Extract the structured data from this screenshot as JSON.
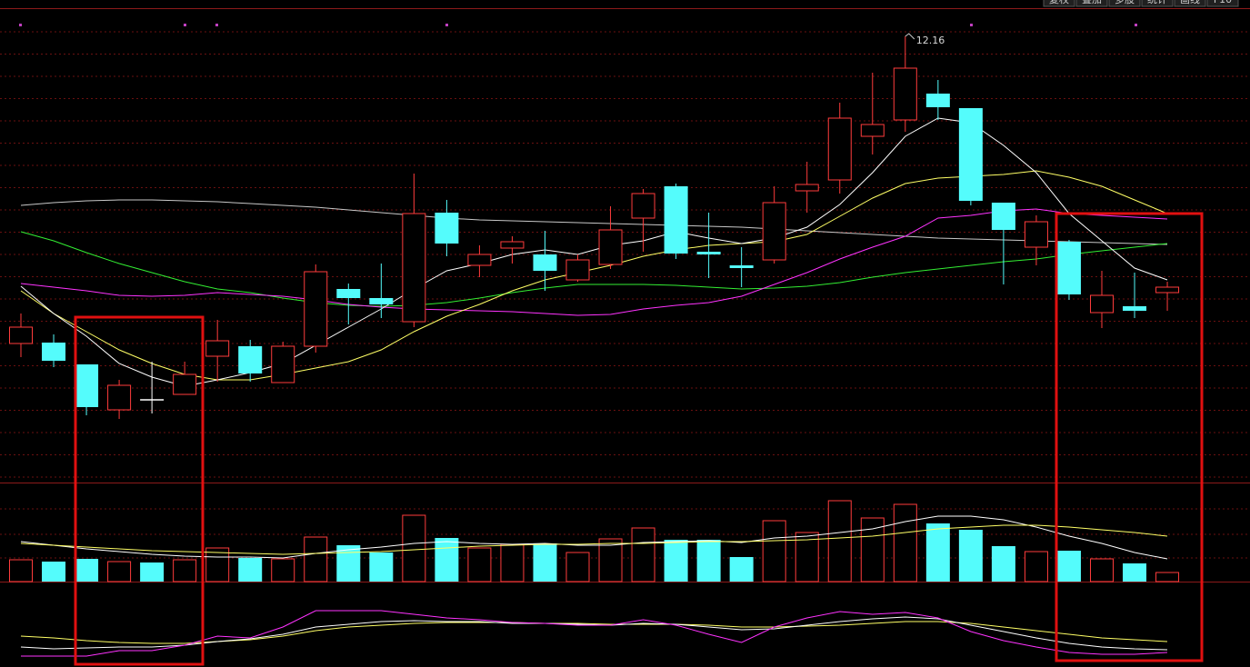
{
  "toolbar": [
    "复权",
    "叠加",
    "多股",
    "统计",
    "画线",
    "F10"
  ],
  "chart_data": [
    {
      "type": "candlestick",
      "up_color": "#ff3c3c",
      "down_color": "#54fcfc",
      "doji_color": "#ffffff",
      "ylim": [
        7.26,
        12.46
      ],
      "grid": true,
      "open": [
        8.78,
        8.79,
        8.55,
        8.05,
        8.16,
        8.22,
        8.64,
        8.75,
        8.35,
        8.75,
        9.38,
        9.28,
        9.02,
        10.22,
        9.64,
        9.83,
        9.76,
        9.48,
        9.65,
        10.16,
        10.51,
        9.79,
        9.64,
        9.7,
        10.46,
        10.58,
        11.06,
        11.24,
        11.53,
        11.37,
        10.33,
        9.84,
        9.9,
        9.12,
        9.19,
        9.34
      ],
      "high": [
        9.11,
        8.88,
        8.55,
        8.38,
        8.58,
        8.58,
        9.04,
        8.82,
        8.8,
        9.65,
        9.44,
        9.66,
        10.65,
        10.36,
        9.86,
        9.96,
        10.02,
        9.76,
        10.29,
        10.48,
        10.54,
        10.22,
        9.84,
        10.51,
        10.78,
        11.43,
        11.76,
        12.16,
        11.68,
        11.37,
        10.33,
        10.19,
        9.92,
        9.58,
        9.56,
        9.46
      ],
      "low": [
        8.63,
        8.52,
        7.99,
        7.95,
        8.01,
        8.22,
        8.36,
        8.36,
        8.35,
        8.68,
        8.99,
        9.06,
        8.96,
        9.74,
        9.51,
        9.66,
        9.36,
        9.46,
        9.6,
        9.79,
        9.71,
        9.5,
        9.4,
        9.66,
        10.22,
        10.43,
        10.86,
        11.11,
        11.24,
        10.3,
        9.43,
        9.64,
        9.26,
        8.95,
        9.06,
        9.14
      ],
      "close": [
        8.96,
        8.59,
        8.08,
        8.32,
        8.16,
        8.44,
        8.81,
        8.45,
        8.75,
        9.57,
        9.28,
        9.21,
        10.21,
        9.88,
        9.76,
        9.9,
        9.58,
        9.7,
        10.03,
        10.43,
        9.77,
        9.76,
        9.61,
        10.33,
        10.53,
        11.26,
        11.19,
        11.81,
        11.38,
        10.35,
        10.03,
        10.12,
        9.32,
        9.31,
        9.14,
        9.4
      ],
      "series": [
        {
          "color": "#c8c8c8",
          "values": [
            10.3,
            10.33,
            10.35,
            10.36,
            10.36,
            10.35,
            10.34,
            10.32,
            10.3,
            10.28,
            10.25,
            10.22,
            10.19,
            10.16,
            10.14,
            10.13,
            10.12,
            10.11,
            10.1,
            10.09,
            10.08,
            10.07,
            10.06,
            10.04,
            10.02,
            10.0,
            9.98,
            9.96,
            9.94,
            9.93,
            9.92,
            9.91,
            9.9,
            9.89,
            9.88,
            9.87
          ]
        },
        {
          "color": "#33ee33",
          "values": [
            10.01,
            9.91,
            9.78,
            9.66,
            9.56,
            9.46,
            9.38,
            9.34,
            9.28,
            9.23,
            9.2,
            9.19,
            9.2,
            9.23,
            9.28,
            9.34,
            9.39,
            9.43,
            9.43,
            9.43,
            9.42,
            9.4,
            9.38,
            9.39,
            9.41,
            9.45,
            9.51,
            9.56,
            9.6,
            9.64,
            9.68,
            9.71,
            9.76,
            9.8,
            9.84,
            9.88
          ]
        },
        {
          "color": "#ff33ff",
          "values": [
            9.44,
            9.4,
            9.36,
            9.31,
            9.3,
            9.31,
            9.34,
            9.32,
            9.3,
            9.26,
            9.21,
            9.18,
            9.16,
            9.15,
            9.14,
            9.13,
            9.11,
            9.09,
            9.1,
            9.16,
            9.2,
            9.23,
            9.3,
            9.43,
            9.56,
            9.71,
            9.84,
            9.96,
            10.16,
            10.19,
            10.24,
            10.26,
            10.21,
            10.19,
            10.17,
            10.15
          ]
        },
        {
          "color": "#ffff66",
          "values": [
            9.36,
            9.11,
            8.91,
            8.71,
            8.56,
            8.44,
            8.38,
            8.38,
            8.44,
            8.51,
            8.58,
            8.71,
            8.91,
            9.08,
            9.21,
            9.36,
            9.48,
            9.56,
            9.64,
            9.74,
            9.81,
            9.86,
            9.88,
            9.9,
            9.98,
            10.18,
            10.38,
            10.54,
            10.6,
            10.62,
            10.64,
            10.68,
            10.61,
            10.51,
            10.36,
            10.21
          ]
        },
        {
          "color": "#ffffff",
          "values": [
            9.41,
            9.11,
            8.86,
            8.56,
            8.41,
            8.31,
            8.38,
            8.46,
            8.56,
            8.76,
            8.96,
            9.16,
            9.38,
            9.58,
            9.66,
            9.76,
            9.81,
            9.76,
            9.86,
            9.91,
            10.01,
            9.94,
            9.88,
            9.94,
            10.06,
            10.31,
            10.66,
            11.06,
            11.26,
            11.21,
            10.96,
            10.66,
            10.21,
            9.91,
            9.61,
            9.48
          ]
        }
      ]
    },
    {
      "type": "bar",
      "ylim": [
        0,
        108
      ],
      "values": [
        24,
        22,
        25,
        22,
        21,
        24,
        37,
        26,
        25,
        49,
        40,
        32,
        73,
        48,
        37,
        41,
        42,
        32,
        47,
        59,
        46,
        46,
        27,
        67,
        54,
        89,
        70,
        85,
        64,
        57,
        39,
        33,
        34,
        25,
        20,
        10
      ],
      "series": [
        {
          "color": "#ffffff",
          "values": [
            44,
            40,
            36,
            33,
            30,
            28,
            27,
            27,
            26,
            31,
            35,
            38,
            42,
            44,
            42,
            41,
            42,
            40,
            40,
            43,
            44,
            45,
            43,
            48,
            50,
            54,
            58,
            66,
            72,
            72,
            68,
            60,
            50,
            42,
            32,
            25
          ]
        },
        {
          "color": "#ffff66",
          "values": [
            42,
            40,
            38,
            36,
            34,
            33,
            32,
            31,
            30,
            31,
            32,
            33,
            35,
            37,
            39,
            40,
            41,
            41,
            42,
            42,
            43,
            44,
            44,
            45,
            46,
            48,
            50,
            54,
            58,
            60,
            62,
            62,
            60,
            57,
            54,
            50
          ]
        }
      ]
    },
    {
      "type": "line",
      "ylim": [
        0,
        90
      ],
      "series": [
        {
          "color": "#ffff66",
          "values": [
            34,
            32,
            29,
            27,
            26,
            26,
            28,
            30,
            34,
            40,
            44,
            46,
            48,
            49,
            49,
            49,
            48,
            48,
            47,
            47,
            47,
            46,
            44,
            44,
            45,
            46,
            48,
            50,
            50,
            48,
            44,
            40,
            36,
            32,
            30,
            28
          ]
        },
        {
          "color": "#ffffff",
          "values": [
            22,
            20,
            21,
            22,
            22,
            24,
            28,
            31,
            36,
            44,
            47,
            50,
            51,
            50,
            50,
            48,
            48,
            47,
            46,
            48,
            47,
            44,
            41,
            42,
            46,
            50,
            53,
            55,
            53,
            46,
            39,
            32,
            26,
            22,
            20,
            19
          ]
        },
        {
          "color": "#ff33ff",
          "values": [
            12,
            12,
            12,
            18,
            18,
            24,
            34,
            32,
            44,
            62,
            62,
            62,
            58,
            54,
            52,
            49,
            48,
            46,
            46,
            52,
            46,
            36,
            27,
            44,
            54,
            61,
            58,
            60,
            54,
            39,
            29,
            22,
            16,
            14,
            14,
            16
          ]
        }
      ]
    }
  ]
}
